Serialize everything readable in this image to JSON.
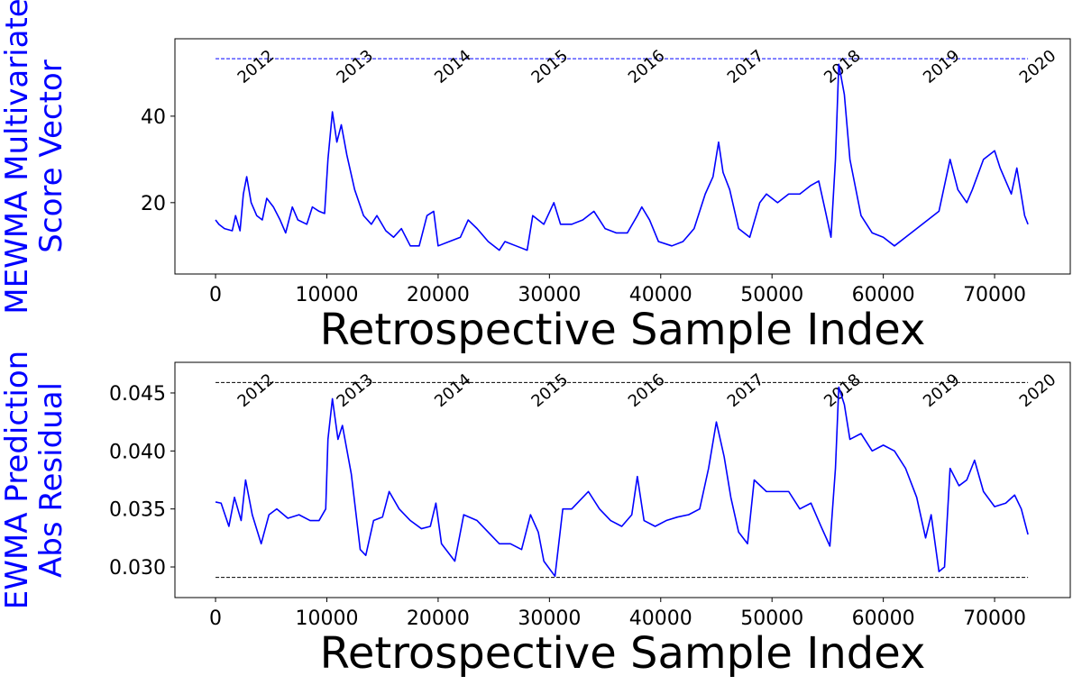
{
  "chart_data": [
    {
      "type": "line",
      "color": "#0000ff",
      "ylabel": [
        "MEWMA Multivariate",
        "Score Vector"
      ],
      "xlabel": "Retrospective Sample Index",
      "xlim": [
        -3650,
        76800
      ],
      "ylim": [
        3.5,
        57.9
      ],
      "xticks": [
        0,
        10000,
        20000,
        30000,
        40000,
        50000,
        60000,
        70000
      ],
      "yticks": [
        20,
        40
      ],
      "hlines": [
        {
          "y": 53.3,
          "color": "#0000ff",
          "xmin": 0,
          "xmax": 73000
        }
      ],
      "annotations": [
        {
          "text": "2012",
          "x": 2500
        },
        {
          "text": "2013",
          "x": 11400
        },
        {
          "text": "2014",
          "x": 20200
        },
        {
          "text": "2015",
          "x": 28900
        },
        {
          "text": "2016",
          "x": 37600
        },
        {
          "text": "2017",
          "x": 46500
        },
        {
          "text": "2018",
          "x": 55200
        },
        {
          "text": "2019",
          "x": 64100
        },
        {
          "text": "2020",
          "x": 72750
        }
      ],
      "x": [
        0,
        300,
        800,
        1500,
        1800,
        2200,
        2500,
        2800,
        3200,
        3700,
        4200,
        4600,
        5200,
        5800,
        6300,
        6900,
        7400,
        8200,
        8700,
        9300,
        9800,
        10100,
        10500,
        10900,
        11300,
        11800,
        12500,
        13300,
        14000,
        14500,
        15300,
        16000,
        16700,
        17500,
        18300,
        19000,
        19600,
        20000,
        21000,
        22000,
        22700,
        23500,
        24500,
        25500,
        26000,
        27000,
        28000,
        28500,
        29500,
        30400,
        31000,
        32000,
        33000,
        34000,
        35000,
        36000,
        37000,
        37900,
        38300,
        39000,
        39800,
        41000,
        42000,
        43000,
        44000,
        44700,
        45200,
        45600,
        46200,
        47000,
        48000,
        48900,
        49500,
        50500,
        51500,
        52500,
        53500,
        54200,
        54800,
        55300,
        55700,
        56000,
        56500,
        57000,
        58000,
        59000,
        60000,
        61000,
        62000,
        63000,
        64000,
        65000,
        66000,
        66700,
        67500,
        68000,
        69000,
        70000,
        70500,
        71500,
        72000,
        72700,
        73000
      ],
      "values": [
        16,
        15,
        14,
        13.5,
        17,
        13.5,
        22,
        26,
        20,
        17,
        16,
        21,
        19,
        16,
        13,
        19,
        16,
        15,
        19,
        18,
        17.5,
        30,
        41,
        34,
        38,
        31,
        23,
        17,
        15,
        17,
        13.5,
        12,
        14,
        10,
        10,
        17,
        18,
        10,
        11,
        12,
        16,
        14,
        11,
        9,
        11,
        10,
        9,
        17,
        15,
        20,
        15,
        15,
        16,
        18,
        14,
        13,
        13,
        17,
        19,
        16,
        11,
        10,
        11,
        14,
        22,
        26,
        34,
        27,
        23,
        14,
        12,
        20,
        22,
        20,
        22,
        22,
        24,
        25,
        18,
        12,
        30,
        52,
        45,
        30,
        17,
        13,
        12,
        10,
        12,
        14,
        16,
        18,
        30,
        23,
        20,
        23,
        30,
        32,
        28,
        22,
        28,
        17,
        15
      ]
    },
    {
      "type": "line",
      "color": "#0000ff",
      "ylabel": [
        "EWMA Prediction",
        "Abs Residual"
      ],
      "xlabel": "Retrospective Sample Index",
      "xlim": [
        -3650,
        76800
      ],
      "ylim": [
        0.02736,
        0.04764
      ],
      "xticks": [
        0,
        10000,
        20000,
        30000,
        40000,
        50000,
        60000,
        70000
      ],
      "yticks": [
        {
          "value": 0.03,
          "label": "0.030"
        },
        0.035,
        {
          "value": 0.04,
          "label": "0.040"
        },
        0.045
      ],
      "hlines": [
        {
          "y": 0.0459,
          "color": "#000000",
          "xmin": 0,
          "xmax": 73000
        },
        {
          "y": 0.0291,
          "color": "#000000",
          "xmin": 0,
          "xmax": 73000
        }
      ],
      "annotations": [
        {
          "text": "2012",
          "x": 2500
        },
        {
          "text": "2013",
          "x": 11400
        },
        {
          "text": "2014",
          "x": 20200
        },
        {
          "text": "2015",
          "x": 28900
        },
        {
          "text": "2016",
          "x": 37600
        },
        {
          "text": "2017",
          "x": 46500
        },
        {
          "text": "2018",
          "x": 55200
        },
        {
          "text": "2019",
          "x": 64100
        },
        {
          "text": "2020",
          "x": 72750
        }
      ],
      "x": [
        0,
        500,
        1200,
        1700,
        2300,
        2700,
        3300,
        4100,
        4800,
        5500,
        6500,
        7500,
        8500,
        9300,
        9900,
        10100,
        10500,
        11000,
        11400,
        12200,
        13000,
        13500,
        14200,
        15000,
        15600,
        16500,
        17500,
        18500,
        19300,
        19800,
        20300,
        21500,
        22300,
        23500,
        24500,
        25500,
        26500,
        27500,
        28300,
        29000,
        29500,
        30500,
        31200,
        32000,
        33500,
        34500,
        35500,
        36500,
        37400,
        37900,
        38500,
        39500,
        40500,
        41500,
        42500,
        43500,
        44300,
        45000,
        45700,
        46300,
        47000,
        47800,
        48400,
        49500,
        50500,
        51500,
        52500,
        53500,
        54400,
        55200,
        55700,
        56000,
        56500,
        57000,
        58000,
        59000,
        60000,
        61000,
        62000,
        63000,
        63800,
        64300,
        65000,
        65500,
        66000,
        66800,
        67500,
        68200,
        69000,
        70000,
        71000,
        71800,
        72400,
        73000
      ],
      "values": [
        0.0356,
        0.0355,
        0.0335,
        0.036,
        0.034,
        0.0375,
        0.0345,
        0.032,
        0.0345,
        0.035,
        0.0342,
        0.0345,
        0.034,
        0.034,
        0.035,
        0.041,
        0.0445,
        0.041,
        0.0422,
        0.038,
        0.0315,
        0.031,
        0.034,
        0.0343,
        0.0365,
        0.035,
        0.034,
        0.0333,
        0.0335,
        0.0355,
        0.032,
        0.0305,
        0.0345,
        0.034,
        0.033,
        0.032,
        0.032,
        0.0315,
        0.0345,
        0.033,
        0.0305,
        0.0292,
        0.035,
        0.035,
        0.0365,
        0.035,
        0.034,
        0.0335,
        0.0345,
        0.0378,
        0.034,
        0.0335,
        0.034,
        0.0343,
        0.0345,
        0.035,
        0.0385,
        0.0425,
        0.0395,
        0.036,
        0.033,
        0.032,
        0.0375,
        0.0365,
        0.0365,
        0.0365,
        0.035,
        0.0355,
        0.0335,
        0.0318,
        0.0385,
        0.0455,
        0.044,
        0.041,
        0.0415,
        0.04,
        0.0405,
        0.04,
        0.0385,
        0.036,
        0.0325,
        0.0345,
        0.0296,
        0.03,
        0.0385,
        0.037,
        0.0375,
        0.0392,
        0.0365,
        0.0352,
        0.0355,
        0.0362,
        0.035,
        0.0328
      ]
    }
  ]
}
